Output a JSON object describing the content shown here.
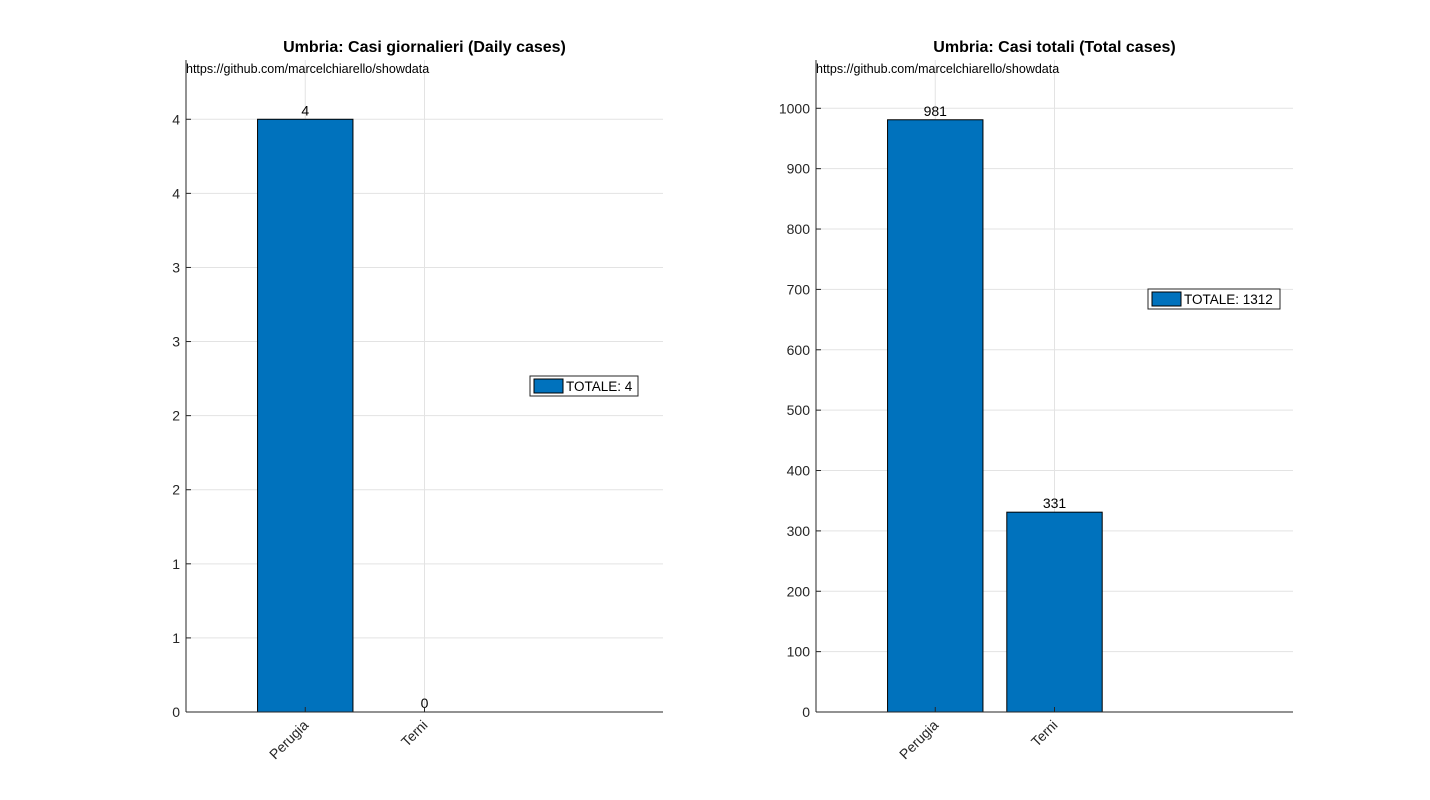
{
  "chart_data": [
    {
      "type": "bar",
      "title": "Umbria: Casi giornalieri (Daily cases)",
      "source_note": "https://github.com/marcelchiarello/showdata",
      "categories": [
        "Perugia",
        "Terni"
      ],
      "values": [
        4,
        0
      ],
      "data_labels": [
        "4",
        "0"
      ],
      "ylim": [
        0,
        4.4
      ],
      "yticks": [
        0,
        0.5,
        1,
        1.5,
        2,
        2.5,
        3,
        3.5,
        4
      ],
      "ytick_labels": [
        "0",
        "1",
        "1",
        "2",
        "2",
        "3",
        "3",
        "4",
        "4"
      ],
      "xlim": [
        0,
        4
      ],
      "bar_x": [
        1,
        2
      ],
      "legend": "TOTALE: 4",
      "legend_position": "right-middle",
      "grid": true,
      "bar_color": "#0072BD"
    },
    {
      "type": "bar",
      "title": "Umbria: Casi totali (Total cases)",
      "source_note": "https://github.com/marcelchiarello/showdata",
      "categories": [
        "Perugia",
        "Terni"
      ],
      "values": [
        981,
        331
      ],
      "data_labels": [
        "981",
        "331"
      ],
      "ylim": [
        0,
        1080
      ],
      "yticks": [
        0,
        100,
        200,
        300,
        400,
        500,
        600,
        700,
        800,
        900,
        1000
      ],
      "ytick_labels": [
        "0",
        "100",
        "200",
        "300",
        "400",
        "500",
        "600",
        "700",
        "800",
        "900",
        "1000"
      ],
      "xlim": [
        0,
        4
      ],
      "bar_x": [
        1,
        2
      ],
      "legend": "TOTALE: 1312",
      "legend_position": "right-upper",
      "grid": true,
      "bar_color": "#0072BD"
    }
  ]
}
